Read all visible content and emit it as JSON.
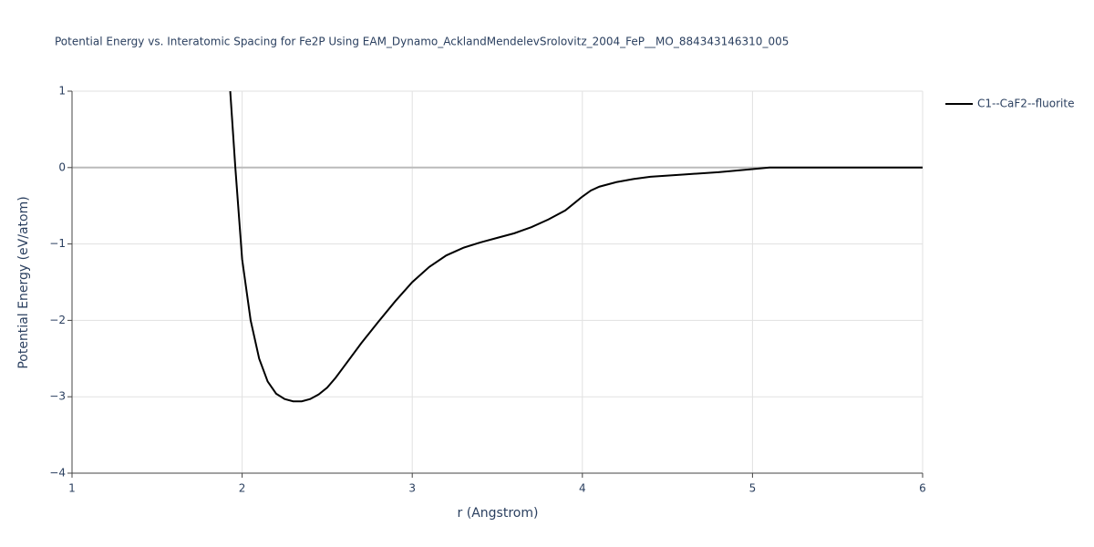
{
  "chart_data": {
    "type": "line",
    "title": "Potential Energy vs. Interatomic Spacing for Fe2P Using EAM_Dynamo_AcklandMendelevSrolovitz_2004_FeP__MO_884343146310_005",
    "xlabel": "r (Angstrom)",
    "ylabel": "Potential Energy (eV/atom)",
    "xlim": [
      1,
      6
    ],
    "ylim": [
      -4,
      1
    ],
    "xticks": [
      1,
      2,
      3,
      4,
      5,
      6
    ],
    "yticks": [
      {
        "value": -4,
        "label": "−4"
      },
      {
        "value": -3,
        "label": "−3"
      },
      {
        "value": -2,
        "label": "−2"
      },
      {
        "value": -1,
        "label": "−1"
      },
      0,
      1
    ],
    "grid": true,
    "legend": "right",
    "series": [
      {
        "name": "C1--CaF2--fluorite",
        "color": "#000000",
        "x": [
          1.93,
          1.96,
          2.0,
          2.05,
          2.1,
          2.15,
          2.2,
          2.25,
          2.3,
          2.35,
          2.4,
          2.45,
          2.5,
          2.55,
          2.6,
          2.7,
          2.8,
          2.9,
          3.0,
          3.1,
          3.2,
          3.3,
          3.4,
          3.5,
          3.6,
          3.7,
          3.8,
          3.9,
          4.0,
          4.05,
          4.1,
          4.2,
          4.3,
          4.4,
          4.6,
          4.8,
          5.0,
          5.1,
          5.3,
          6.0
        ],
        "values": [
          1.0,
          0.0,
          -1.2,
          -2.0,
          -2.5,
          -2.8,
          -2.96,
          -3.03,
          -3.06,
          -3.06,
          -3.03,
          -2.97,
          -2.88,
          -2.75,
          -2.6,
          -2.3,
          -2.02,
          -1.75,
          -1.5,
          -1.3,
          -1.15,
          -1.05,
          -0.98,
          -0.92,
          -0.86,
          -0.78,
          -0.68,
          -0.56,
          -0.38,
          -0.3,
          -0.25,
          -0.19,
          -0.15,
          -0.12,
          -0.09,
          -0.06,
          -0.02,
          0.0,
          0.0,
          0.0
        ]
      }
    ]
  }
}
